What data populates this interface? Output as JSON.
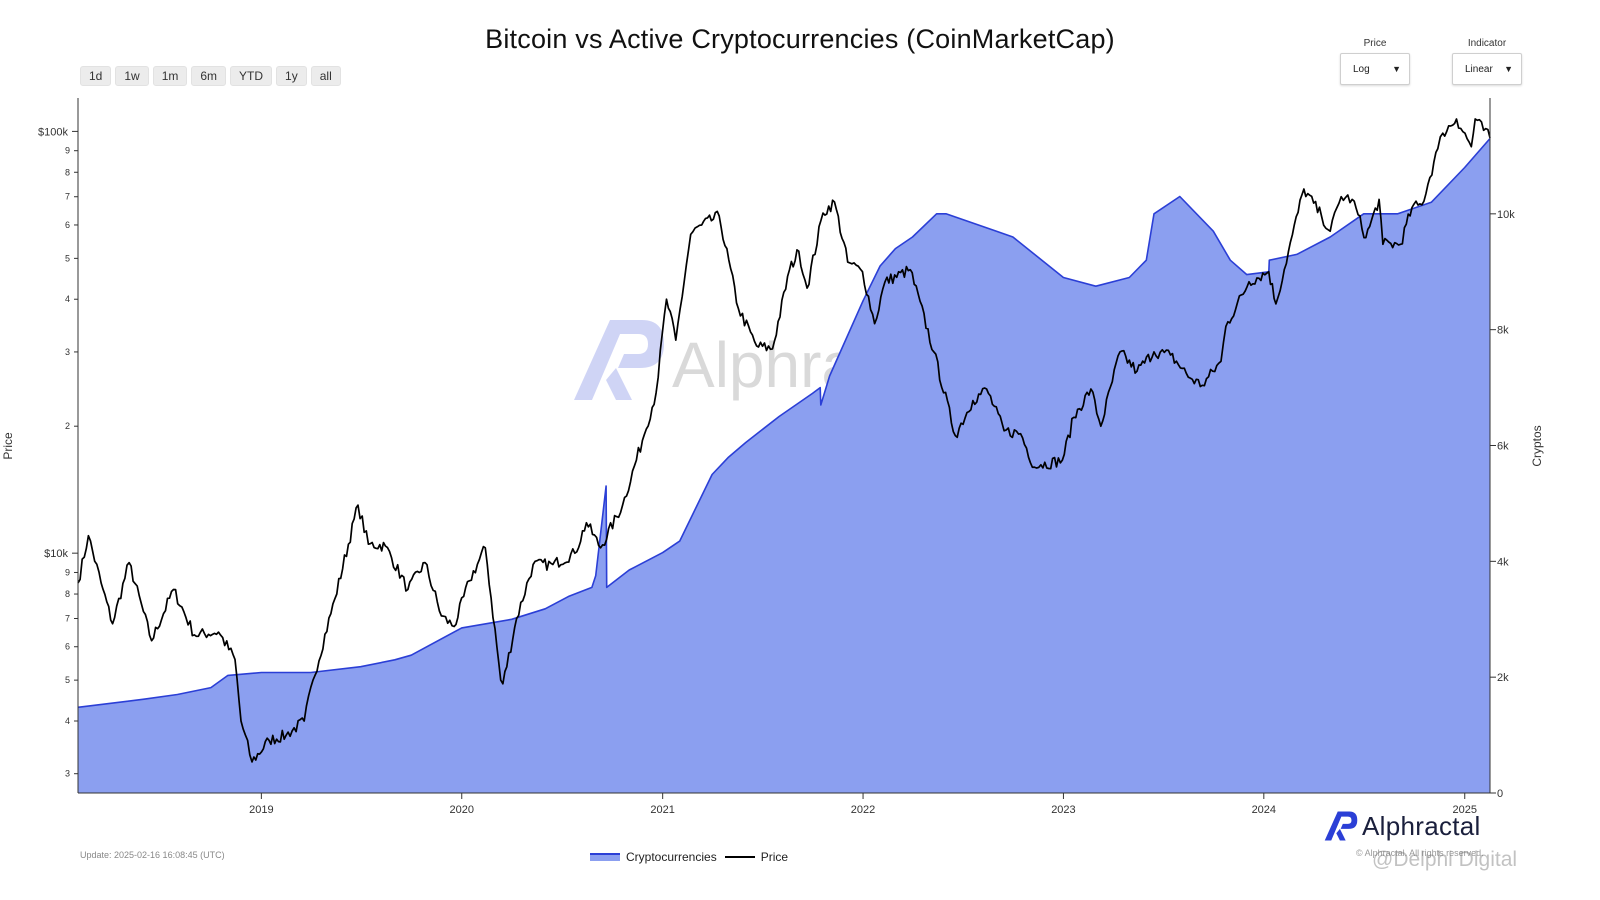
{
  "title": "Bitcoin vs Active Cryptocurrencies (CoinMarketCap)",
  "range_buttons": [
    "1d",
    "1w",
    "1m",
    "6m",
    "YTD",
    "1y",
    "all"
  ],
  "controls": {
    "price_label": "Price",
    "price_value": "Log",
    "indicator_label": "Indicator",
    "indicator_value": "Linear"
  },
  "watermark": "Alphractal",
  "brand": "Alphractal",
  "update_text": "Update: 2025-02-16 16:08:45 (UTC)",
  "credit": "© Alphractal. All rights reserved.",
  "overlay_watermark": "@Delphi Digital",
  "colors": {
    "area_fill": "#8b9ff0",
    "area_line": "#2b3fd6",
    "price_line": "#000000",
    "brand": "#2b3fd6"
  },
  "chart_data": {
    "type": "area",
    "title": "Bitcoin vs Active Cryptocurrencies (CoinMarketCap)",
    "x_ticks": [
      "2019",
      "2020",
      "2021",
      "2022",
      "2023",
      "2024",
      "2025"
    ],
    "xlim": [
      "2018-02-01",
      "2025-02-16"
    ],
    "y_left": {
      "label": "Price",
      "scale": "log",
      "range": [
        2700,
        120000
      ],
      "major_ticks": [
        {
          "value": 10000,
          "label": "$10k"
        },
        {
          "value": 100000,
          "label": "$100k"
        }
      ],
      "minor_ticks": [
        {
          "value": 3000,
          "label": "3"
        },
        {
          "value": 4000,
          "label": "4"
        },
        {
          "value": 5000,
          "label": "5"
        },
        {
          "value": 6000,
          "label": "6"
        },
        {
          "value": 7000,
          "label": "7"
        },
        {
          "value": 8000,
          "label": "8"
        },
        {
          "value": 9000,
          "label": "9"
        },
        {
          "value": 20000,
          "label": "2"
        },
        {
          "value": 30000,
          "label": "3"
        },
        {
          "value": 40000,
          "label": "4"
        },
        {
          "value": 50000,
          "label": "5"
        },
        {
          "value": 60000,
          "label": "6"
        },
        {
          "value": 70000,
          "label": "7"
        },
        {
          "value": 80000,
          "label": "8"
        },
        {
          "value": 90000,
          "label": "9"
        }
      ]
    },
    "y_right": {
      "label": "Cryptos",
      "scale": "linear",
      "range": [
        0,
        12000
      ],
      "ticks": [
        {
          "value": 0,
          "label": "0"
        },
        {
          "value": 2000,
          "label": "2k"
        },
        {
          "value": 4000,
          "label": "4k"
        },
        {
          "value": 6000,
          "label": "6k"
        },
        {
          "value": 8000,
          "label": "8k"
        },
        {
          "value": 10000,
          "label": "10k"
        }
      ]
    },
    "legend_position": "bottom-center",
    "series": [
      {
        "name": "Cryptocurrencies",
        "type": "area",
        "axis": "right",
        "x": [
          "2018-02-01",
          "2018-06-01",
          "2018-08-01",
          "2018-10-01",
          "2018-11-01",
          "2019-01-01",
          "2019-04-01",
          "2019-07-01",
          "2019-09-01",
          "2019-10-01",
          "2020-01-01",
          "2020-04-01",
          "2020-06-01",
          "2020-07-15",
          "2020-08-25",
          "2020-09-01",
          "2020-09-20",
          "2020-09-21",
          "2020-11-01",
          "2021-01-01",
          "2021-02-01",
          "2021-04-01",
          "2021-05-01",
          "2021-06-01",
          "2021-08-01",
          "2021-10-01",
          "2021-10-15",
          "2021-10-16",
          "2021-11-01",
          "2022-01-01",
          "2022-02-01",
          "2022-03-01",
          "2022-04-01",
          "2022-05-15",
          "2022-06-01",
          "2022-09-01",
          "2022-10-01",
          "2023-01-01",
          "2023-03-01",
          "2023-05-01",
          "2023-06-01",
          "2023-06-15",
          "2023-08-01",
          "2023-10-01",
          "2023-11-01",
          "2023-12-01",
          "2024-01-10",
          "2024-01-11",
          "2024-03-01",
          "2024-05-01",
          "2024-07-01",
          "2024-09-01",
          "2024-11-01",
          "2025-01-01",
          "2025-02-16"
        ],
        "values": [
          1480,
          1620,
          1700,
          1820,
          2030,
          2080,
          2080,
          2180,
          2300,
          2380,
          2850,
          3000,
          3180,
          3400,
          3550,
          3750,
          5300,
          3550,
          3850,
          4150,
          4350,
          5500,
          5800,
          6050,
          6500,
          6900,
          7000,
          6700,
          7200,
          8500,
          9100,
          9400,
          9600,
          10000,
          10000,
          9700,
          9600,
          8900,
          8750,
          8900,
          9200,
          10000,
          10300,
          9700,
          9200,
          8950,
          9000,
          9200,
          9300,
          9600,
          10000,
          10000,
          10200,
          10800,
          11300
        ]
      },
      {
        "name": "Price",
        "type": "line",
        "axis": "left",
        "x": [
          "2018-02-01",
          "2018-02-20",
          "2018-03-15",
          "2018-04-05",
          "2018-05-05",
          "2018-06-15",
          "2018-07-25",
          "2018-09-01",
          "2018-10-15",
          "2018-11-14",
          "2018-11-25",
          "2018-12-15",
          "2019-01-15",
          "2019-02-15",
          "2019-03-20",
          "2019-04-05",
          "2019-05-15",
          "2019-06-26",
          "2019-07-15",
          "2019-08-15",
          "2019-09-25",
          "2019-10-26",
          "2019-11-25",
          "2019-12-18",
          "2020-01-15",
          "2020-02-13",
          "2020-03-12",
          "2020-03-16",
          "2020-04-10",
          "2020-05-10",
          "2020-06-15",
          "2020-07-25",
          "2020-08-15",
          "2020-09-10",
          "2020-10-20",
          "2020-11-25",
          "2020-12-20",
          "2021-01-08",
          "2021-01-25",
          "2021-02-21",
          "2021-03-13",
          "2021-04-14",
          "2021-05-19",
          "2021-06-21",
          "2021-07-20",
          "2021-08-20",
          "2021-09-06",
          "2021-09-21",
          "2021-10-20",
          "2021-11-10",
          "2021-12-04",
          "2021-12-31",
          "2022-01-22",
          "2022-02-10",
          "2022-03-28",
          "2022-05-10",
          "2022-06-18",
          "2022-07-20",
          "2022-08-14",
          "2022-09-15",
          "2022-10-15",
          "2022-11-09",
          "2022-11-21",
          "2022-12-30",
          "2023-01-20",
          "2023-02-20",
          "2023-03-10",
          "2023-04-14",
          "2023-05-15",
          "2023-06-15",
          "2023-07-15",
          "2023-08-20",
          "2023-09-11",
          "2023-10-15",
          "2023-10-24",
          "2023-12-05",
          "2024-01-10",
          "2024-01-23",
          "2024-02-15",
          "2024-03-14",
          "2024-04-15",
          "2024-05-01",
          "2024-05-21",
          "2024-06-10",
          "2024-07-05",
          "2024-07-29",
          "2024-08-05",
          "2024-09-06",
          "2024-09-27",
          "2024-10-15",
          "2024-11-13",
          "2024-11-22",
          "2024-12-17",
          "2025-01-13",
          "2025-01-20",
          "2025-02-16"
        ],
        "values": [
          8500,
          11000,
          8500,
          6800,
          9500,
          6200,
          8200,
          6400,
          6500,
          5600,
          4000,
          3200,
          3600,
          3700,
          4000,
          5000,
          7800,
          13000,
          10500,
          10400,
          8200,
          9500,
          7100,
          6700,
          8600,
          10300,
          5000,
          4900,
          7000,
          9400,
          9400,
          10000,
          11800,
          10300,
          13000,
          18500,
          24000,
          40000,
          32000,
          57000,
          60000,
          63000,
          38000,
          31000,
          30500,
          47000,
          52000,
          42500,
          64000,
          68000,
          49000,
          46500,
          35000,
          44000,
          47000,
          30000,
          19000,
          23000,
          24500,
          19500,
          19200,
          16000,
          16200,
          16600,
          21000,
          24500,
          20000,
          30000,
          27000,
          30000,
          29500,
          26000,
          25000,
          28500,
          34500,
          44000,
          46500,
          39000,
          52000,
          73000,
          63000,
          58000,
          70000,
          69000,
          56000,
          69000,
          54000,
          54000,
          66000,
          67000,
          91000,
          99000,
          107000,
          92000,
          107000,
          96500
        ]
      }
    ]
  }
}
